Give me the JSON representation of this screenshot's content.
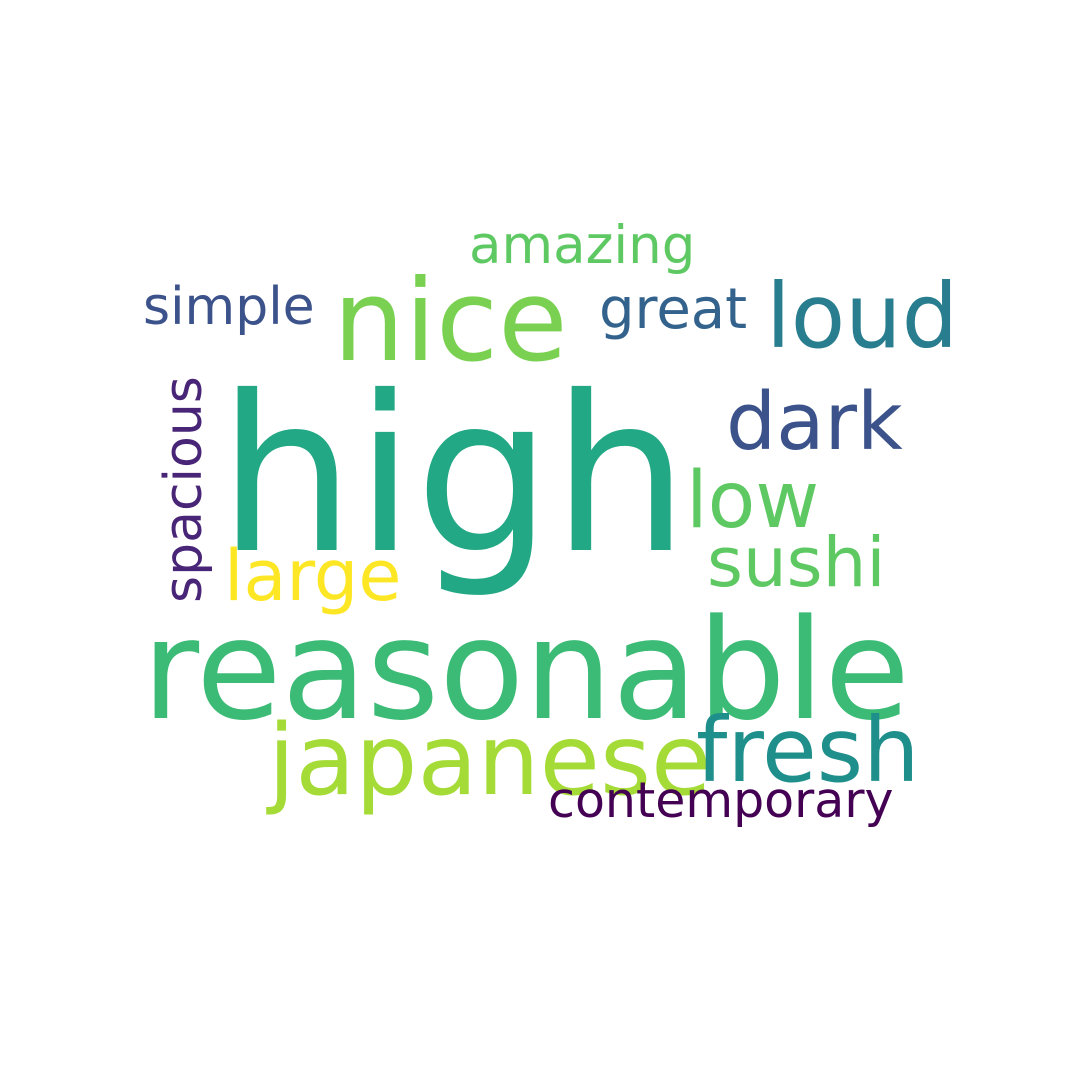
{
  "words": {
    "high": {
      "text": "high",
      "color": "#22a884"
    },
    "reasonable": {
      "text": "reasonable",
      "color": "#3bbb75"
    },
    "nice": {
      "text": "nice",
      "color": "#7ad151"
    },
    "japanese": {
      "text": "japanese",
      "color": "#a5db36"
    },
    "fresh": {
      "text": "fresh",
      "color": "#1f8f8b"
    },
    "loud": {
      "text": "loud",
      "color": "#287d8e"
    },
    "dark": {
      "text": "dark",
      "color": "#3b528b"
    },
    "low": {
      "text": "low",
      "color": "#5ec962"
    },
    "large": {
      "text": "large",
      "color": "#fde725"
    },
    "sushi": {
      "text": "sushi",
      "color": "#5ec962"
    },
    "contemporary": {
      "text": "contemporary",
      "color": "#440154"
    },
    "great": {
      "text": "great",
      "color": "#33638d"
    },
    "amazing": {
      "text": "amazing",
      "color": "#5ec962"
    },
    "simple": {
      "text": "simple",
      "color": "#3b528b"
    },
    "spacious": {
      "text": "spacious",
      "color": "#482576"
    }
  }
}
